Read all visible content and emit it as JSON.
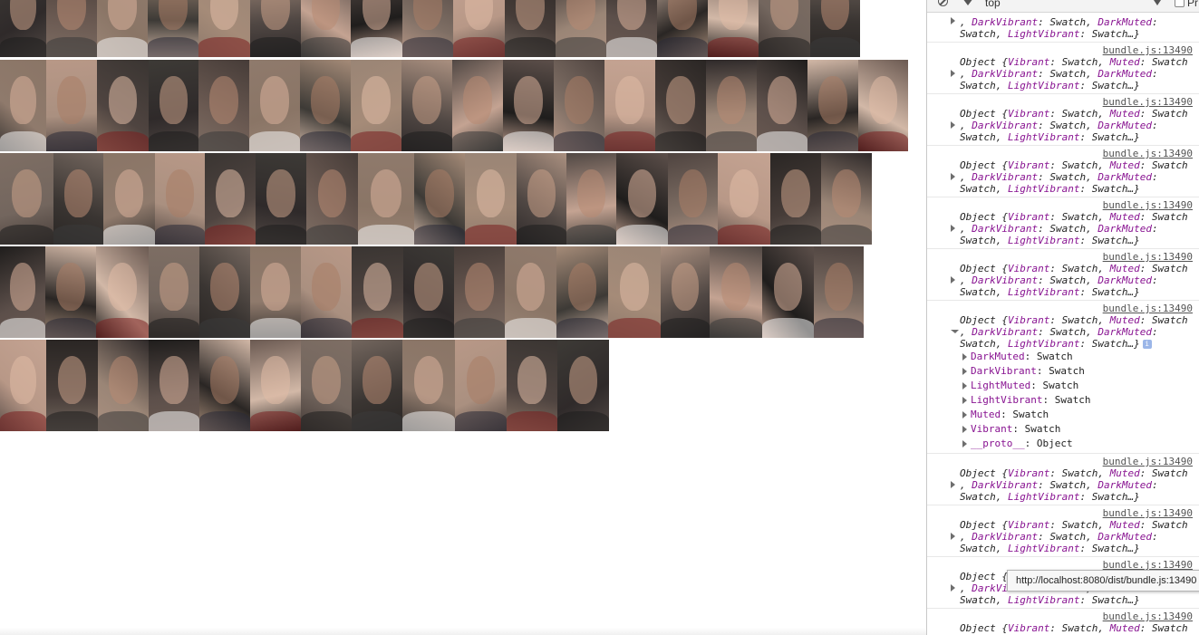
{
  "gallery": {
    "rows": [
      {
        "widths": [
          51,
          56,
          56,
          56,
          57,
          56,
          55,
          57,
          56,
          57,
          56,
          56,
          56,
          56,
          56,
          57,
          55
        ]
      },
      {
        "widths": [
          51,
          56,
          57,
          55,
          56,
          56,
          56,
          56,
          56,
          56,
          56,
          56,
          56,
          56,
          56,
          56,
          56,
          55
        ]
      },
      {
        "widths": [
          59,
          55,
          57,
          55,
          56,
          56,
          57,
          62,
          56,
          57,
          55,
          55,
          57,
          55,
          58,
          56,
          56
        ]
      },
      {
        "widths": [
          50,
          56,
          58,
          56,
          56,
          56,
          56,
          57,
          56,
          56,
          57,
          57,
          58,
          54,
          58,
          57,
          55
        ]
      },
      {
        "widths": [
          51,
          57,
          56,
          56,
          56,
          56,
          56,
          56,
          58,
          57,
          56,
          57
        ]
      }
    ],
    "photo_colors": [
      "#2f2a2a",
      "#6b5a52",
      "#8a7566",
      "#3d3a36",
      "#a58b78",
      "#514844",
      "#c4a392",
      "#1f1d1c",
      "#7e6e64",
      "#b89887",
      "#463c38",
      "#9a8576",
      "#5c4f4a",
      "#2a2624",
      "#d2b8a7",
      "#73665e",
      "#3a3532",
      "#8f7a6c",
      "#aa9080",
      "#4f4440"
    ]
  },
  "devtools": {
    "toolbar": {
      "context": "top",
      "preserve_label": "Pr"
    },
    "source_link": "bundle.js:13490",
    "messages": [
      {
        "type": "partial",
        "line2_keys": [
          "DarkVibrant",
          "DarkMuted"
        ],
        "line3_keys": [
          "Swatch",
          "LightVibrant"
        ]
      },
      {
        "type": "collapsed"
      },
      {
        "type": "collapsed"
      },
      {
        "type": "collapsed"
      },
      {
        "type": "collapsed"
      },
      {
        "type": "collapsed"
      },
      {
        "type": "expanded"
      },
      {
        "type": "collapsed"
      },
      {
        "type": "collapsed"
      },
      {
        "type": "collapsed-tooltip"
      },
      {
        "type": "last"
      }
    ],
    "line1": "Object {Vibrant: Swatch, Muted: Swatch",
    "line2": ", DarkVibrant: Swatch, DarkMuted:",
    "line3": "Swatch, LightVibrant: Swatch…}",
    "expanded_props": [
      {
        "name": "DarkMuted",
        "value": "Swatch"
      },
      {
        "name": "DarkVibrant",
        "value": "Swatch"
      },
      {
        "name": "LightMuted",
        "value": "Swatch"
      },
      {
        "name": "LightVibrant",
        "value": "Swatch"
      },
      {
        "name": "Muted",
        "value": "Swatch"
      },
      {
        "name": "Vibrant",
        "value": "Swatch"
      },
      {
        "name": "__proto__",
        "value": "Object"
      }
    ],
    "tooltip": "http://localhost:8080/dist/bundle.js:13490"
  },
  "colors": {
    "keyword": "#881391",
    "link": "#545454",
    "badge": "#9bb6e8"
  }
}
